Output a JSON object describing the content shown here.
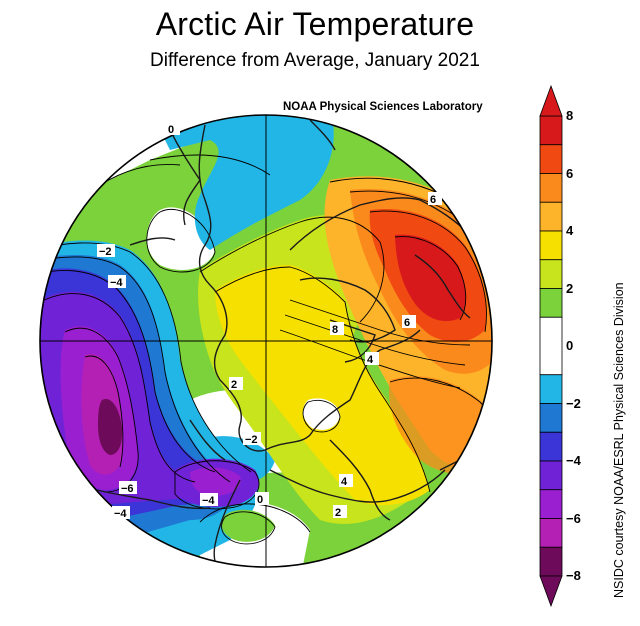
{
  "title": "Arctic Air Temperature",
  "subtitle": "Difference from Average, January 2021",
  "credit_top": "NOAA Physical Sciences Laboratory",
  "credit_side": "NSIDC courtesy NOAA/ESRL Physical Sciences Division",
  "colorbar": {
    "min": -8,
    "max": 8,
    "ticks": [
      "8",
      "6",
      "4",
      "2",
      "0",
      "−2",
      "−4",
      "−6",
      "−8"
    ],
    "bins": [
      {
        "from": 7,
        "to": 8,
        "color": "#d7191c"
      },
      {
        "from": 6,
        "to": 7,
        "color": "#f04a12"
      },
      {
        "from": 5,
        "to": 6,
        "color": "#fb8a1c"
      },
      {
        "from": 4,
        "to": 5,
        "color": "#fdb42a"
      },
      {
        "from": 3,
        "to": 4,
        "color": "#f6e000"
      },
      {
        "from": 2,
        "to": 3,
        "color": "#c8e41c"
      },
      {
        "from": 1,
        "to": 2,
        "color": "#7cd23a"
      },
      {
        "from": -1,
        "to": 1,
        "color": "#ffffff"
      },
      {
        "from": -2,
        "to": -1,
        "color": "#22b6e6"
      },
      {
        "from": -3,
        "to": -2,
        "color": "#1f78d1"
      },
      {
        "from": -4,
        "to": -3,
        "color": "#3b35d8"
      },
      {
        "from": -5,
        "to": -4,
        "color": "#6f22d6"
      },
      {
        "from": -6,
        "to": -5,
        "color": "#9a1fd0"
      },
      {
        "from": -7,
        "to": -6,
        "color": "#b420b4"
      },
      {
        "from": -8,
        "to": -7,
        "color": "#6e0a5a"
      }
    ]
  },
  "contour_labels": [
    "0",
    "−2",
    "−4",
    "2",
    "6",
    "8",
    "6",
    "4",
    "−2",
    "−6",
    "−4",
    "−4",
    "0",
    "4",
    "2"
  ]
}
